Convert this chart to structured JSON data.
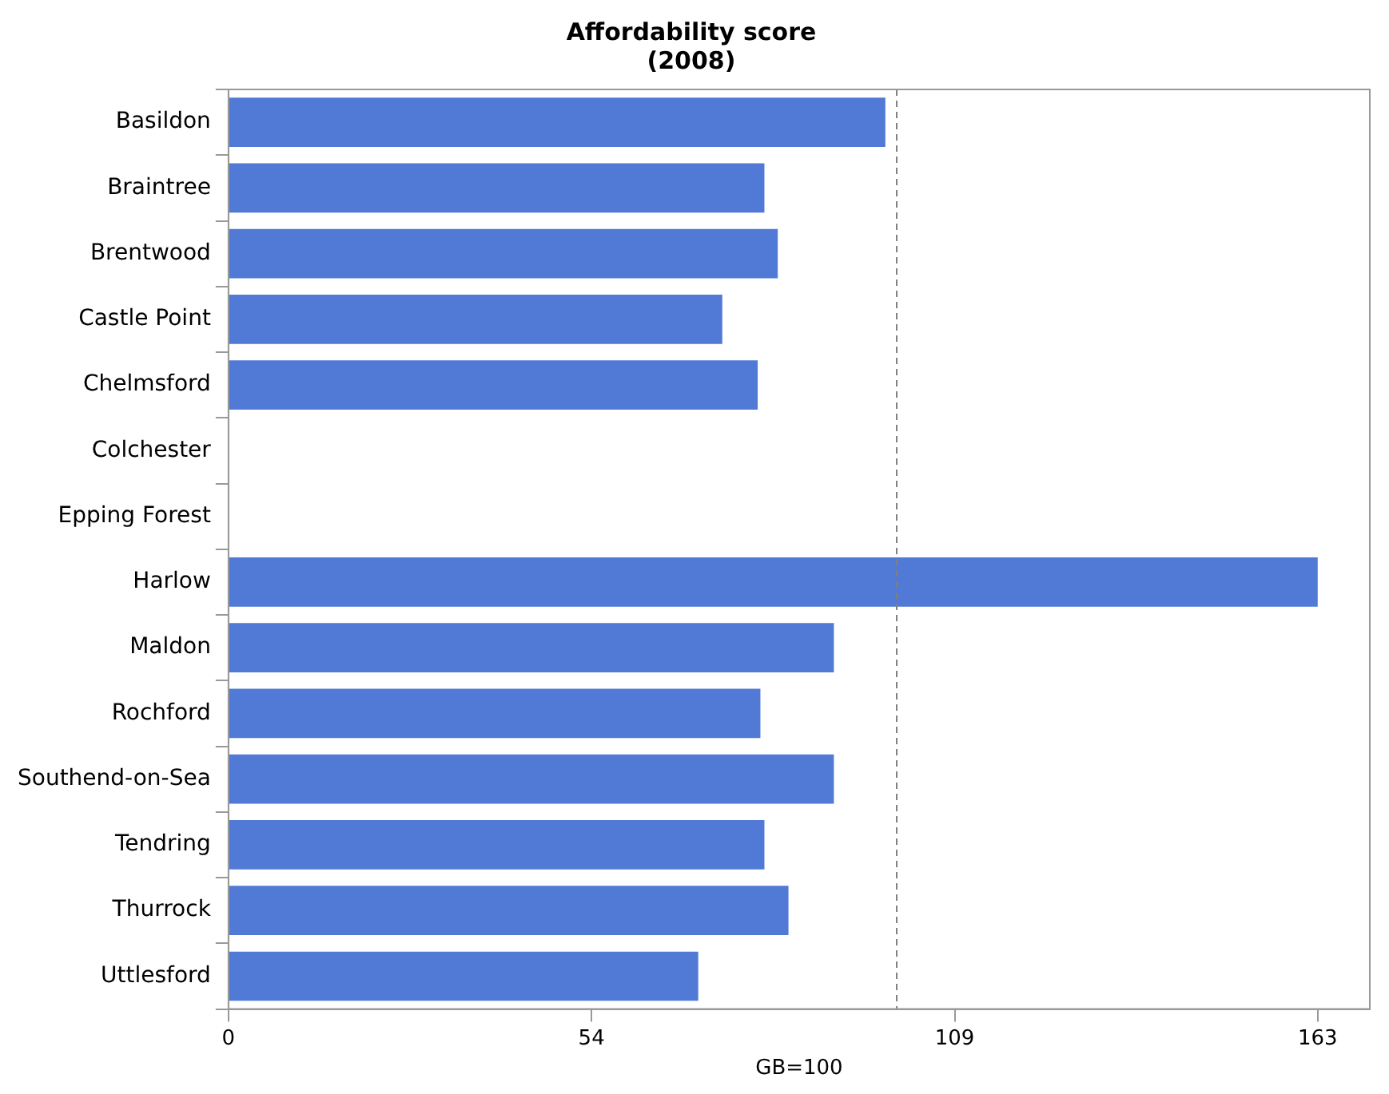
{
  "chart_data": {
    "type": "bar",
    "orientation": "horizontal",
    "title": [
      "Affordability score",
      "(2008)"
    ],
    "xlabel": "GB=100",
    "categories": [
      "Basildon",
      "Braintree",
      "Brentwood",
      "Castle Point",
      "Chelmsford",
      "Colchester",
      "Epping Forest",
      "Harlow",
      "Maldon",
      "Rochford",
      "Southend-on-Sea",
      "Tendring",
      "Thurrock",
      "Uttlesford"
    ],
    "values": [
      98.3,
      80.2,
      82.2,
      73.9,
      79.2,
      null,
      null,
      163,
      90.6,
      79.6,
      90.6,
      80.2,
      83.8,
      70.3
    ],
    "color": "#507ad6",
    "xlim": [
      0,
      170.8
    ],
    "xticks": [
      0,
      {
        "value": 54.33,
        "label": "54"
      },
      {
        "value": 108.67,
        "label": "109"
      },
      163
    ],
    "ref_lines": [
      {
        "axis": "x",
        "value": 100,
        "color": "#808080",
        "line_style": "dashed"
      }
    ]
  }
}
